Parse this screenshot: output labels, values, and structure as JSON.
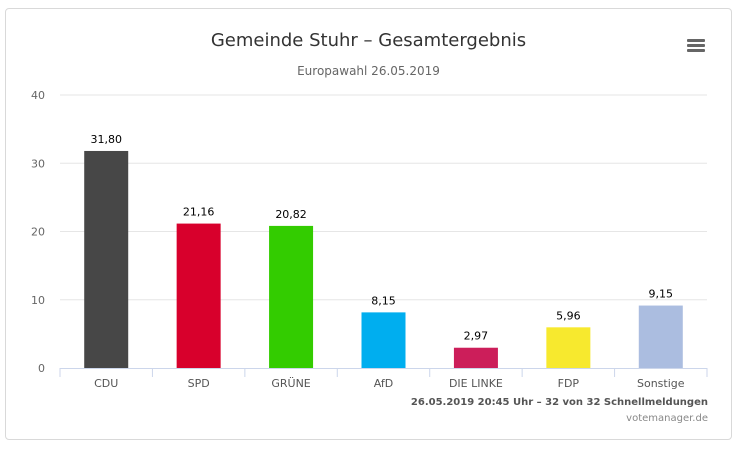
{
  "chart": {
    "title": "Gemeinde Stuhr – Gesamtergebnis",
    "subtitle": "Europawahl 26.05.2019"
  },
  "footer": {
    "status": "26.05.2019 20:45 Uhr – 32 von 32 Schnellmeldungen",
    "credit": "votemanager.de"
  },
  "menu_icon": "hamburger-menu-icon",
  "chart_data": {
    "type": "bar",
    "categories": [
      "CDU",
      "SPD",
      "GRÜNE",
      "AfD",
      "DIE LINKE",
      "FDP",
      "Sonstige"
    ],
    "values": [
      31.8,
      21.16,
      20.82,
      8.15,
      2.97,
      5.96,
      9.15
    ],
    "value_labels": [
      "31,80",
      "21,16",
      "20,82",
      "8,15",
      "2,97",
      "5,96",
      "9,15"
    ],
    "colors": [
      "#474747",
      "#d8002c",
      "#33cc00",
      "#00aeef",
      "#cc1e5a",
      "#f7e92e",
      "#abbde0"
    ],
    "ylim": [
      0,
      40
    ],
    "yticks": [
      "0",
      "10",
      "20",
      "30",
      "40"
    ],
    "grid": true,
    "legend": false
  }
}
